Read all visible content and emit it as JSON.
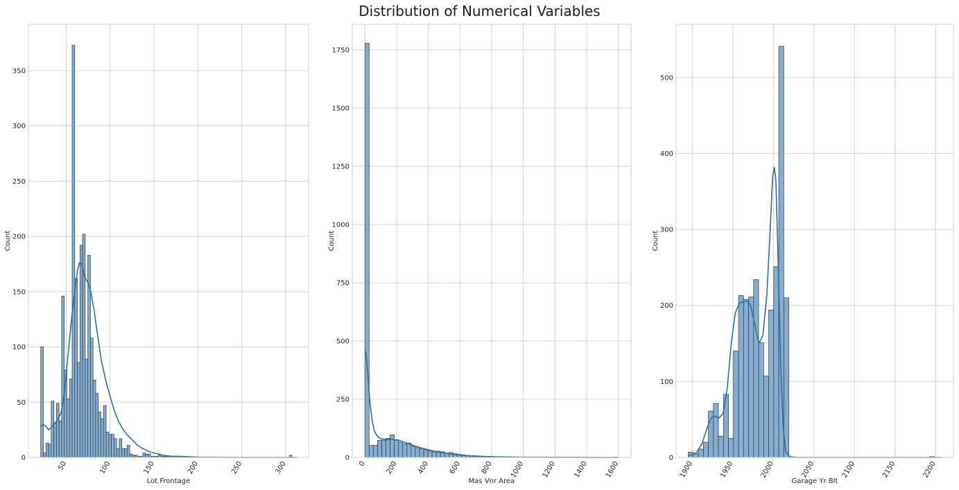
{
  "figure": {
    "title": "Distribution of Numerical Variables"
  },
  "colors": {
    "bar_fill": "#7fa9cc",
    "bar_edge": "#2b3a47",
    "kde": "#2472a8",
    "grid": "#d4d4d4",
    "frame": "#cfcfcf",
    "text": "#262626"
  },
  "chart_data": [
    {
      "type": "bar",
      "xlabel": "Lot Frontage",
      "ylabel": "Count",
      "grid": true,
      "xlim": [
        7,
        326
      ],
      "ylim": [
        0,
        392
      ],
      "xticks": [
        50,
        100,
        150,
        200,
        250,
        300
      ],
      "yticks": [
        0,
        50,
        100,
        150,
        200,
        250,
        300,
        350
      ],
      "bin_start": 21,
      "bin_width": 2.98,
      "counts": [
        100,
        4,
        13,
        12,
        51,
        31,
        49,
        33,
        146,
        79,
        53,
        71,
        373,
        162,
        86,
        192,
        202,
        89,
        183,
        108,
        70,
        58,
        41,
        35,
        47,
        23,
        21,
        21,
        17,
        8,
        17,
        8,
        8,
        11,
        3,
        2,
        2,
        1,
        1,
        4,
        3,
        3,
        1,
        1,
        1,
        2,
        1,
        1,
        1,
        1,
        1,
        1,
        1,
        1,
        1,
        0,
        0,
        0,
        0,
        0,
        0,
        0,
        0,
        0,
        0,
        0,
        0,
        0,
        0,
        0,
        0,
        0,
        0,
        0,
        0,
        0,
        0,
        0,
        0,
        0,
        0,
        0,
        0,
        0,
        0,
        0,
        0,
        0,
        0,
        0,
        0,
        0,
        0,
        0,
        0,
        2
      ],
      "kde": [
        [
          21,
          28
        ],
        [
          24,
          30
        ],
        [
          27,
          28
        ],
        [
          30,
          25
        ],
        [
          33,
          27
        ],
        [
          36,
          30
        ],
        [
          40,
          34
        ],
        [
          44,
          40
        ],
        [
          48,
          58
        ],
        [
          52,
          92
        ],
        [
          56,
          125
        ],
        [
          60,
          152
        ],
        [
          63,
          170
        ],
        [
          65,
          176
        ],
        [
          68,
          175
        ],
        [
          71,
          163
        ],
        [
          75,
          158
        ],
        [
          78,
          150
        ],
        [
          82,
          132
        ],
        [
          86,
          109
        ],
        [
          90,
          88
        ],
        [
          95,
          70
        ],
        [
          100,
          55
        ],
        [
          105,
          42
        ],
        [
          110,
          32
        ],
        [
          115,
          25
        ],
        [
          120,
          20
        ],
        [
          125,
          16
        ],
        [
          130,
          12
        ],
        [
          135,
          9
        ],
        [
          140,
          7
        ],
        [
          145,
          5
        ],
        [
          150,
          4
        ],
        [
          155,
          3
        ],
        [
          160,
          2
        ],
        [
          170,
          1
        ],
        [
          180,
          1
        ],
        [
          200,
          0.3
        ],
        [
          250,
          0
        ],
        [
          313,
          0
        ]
      ]
    },
    {
      "type": "bar",
      "xlabel": "Mas Vnr Area",
      "ylabel": "Count",
      "grid": true,
      "xlim": [
        -80,
        1680
      ],
      "ylim": [
        0,
        1860
      ],
      "xticks": [
        0,
        200,
        400,
        600,
        800,
        1000,
        1200,
        1400,
        1600
      ],
      "yticks": [
        0,
        250,
        500,
        750,
        1000,
        1250,
        1500,
        1750
      ],
      "bin_start": 0,
      "bin_width": 26.5,
      "counts": [
        1778,
        52,
        52,
        73,
        74,
        82,
        97,
        76,
        65,
        58,
        62,
        48,
        42,
        38,
        33,
        28,
        24,
        27,
        24,
        19,
        21,
        16,
        13,
        11,
        9,
        8,
        7,
        6,
        5,
        5,
        4,
        3,
        3,
        2,
        2,
        2,
        1,
        1,
        1,
        1,
        1,
        1,
        1,
        1,
        1,
        1,
        1,
        1,
        1,
        1,
        1,
        0,
        0,
        0,
        0,
        0,
        0,
        0,
        0,
        1
      ],
      "kde": [
        [
          0,
          460
        ],
        [
          8,
          440
        ],
        [
          18,
          360
        ],
        [
          30,
          250
        ],
        [
          45,
          160
        ],
        [
          60,
          112
        ],
        [
          80,
          90
        ],
        [
          100,
          80
        ],
        [
          130,
          77
        ],
        [
          160,
          78
        ],
        [
          190,
          76
        ],
        [
          220,
          72
        ],
        [
          250,
          65
        ],
        [
          300,
          52
        ],
        [
          350,
          42
        ],
        [
          400,
          33
        ],
        [
          450,
          25
        ],
        [
          500,
          19
        ],
        [
          550,
          14
        ],
        [
          600,
          10
        ],
        [
          650,
          7
        ],
        [
          700,
          5
        ],
        [
          800,
          3
        ],
        [
          900,
          2
        ],
        [
          1000,
          1
        ],
        [
          1100,
          1
        ],
        [
          1200,
          0.5
        ],
        [
          1400,
          0.3
        ],
        [
          1600,
          0
        ]
      ]
    },
    {
      "type": "bar",
      "xlabel": "Garage Yr Blt",
      "ylabel": "Count",
      "grid": true,
      "xlim": [
        1880,
        2222
      ],
      "ylim": [
        0,
        570
      ],
      "xticks": [
        1900,
        1950,
        2000,
        2050,
        2100,
        2150,
        2200
      ],
      "yticks": [
        0,
        100,
        200,
        300,
        400,
        500
      ],
      "bin_start": 1895,
      "bin_width": 6.2,
      "counts": [
        7,
        5,
        11,
        20,
        61,
        71,
        28,
        83,
        25,
        140,
        213,
        208,
        211,
        234,
        151,
        107,
        194,
        251,
        541,
        210,
        0,
        0,
        0,
        0,
        0,
        0,
        0,
        0,
        0,
        0,
        0,
        0,
        0,
        0,
        0,
        0,
        0,
        0,
        0,
        0,
        0,
        0,
        0,
        0,
        0,
        0,
        0,
        0,
        1
      ],
      "kde": [
        [
          1895,
          2
        ],
        [
          1905,
          6
        ],
        [
          1912,
          18
        ],
        [
          1918,
          38
        ],
        [
          1923,
          52
        ],
        [
          1928,
          54
        ],
        [
          1933,
          52
        ],
        [
          1938,
          58
        ],
        [
          1943,
          90
        ],
        [
          1948,
          150
        ],
        [
          1953,
          190
        ],
        [
          1958,
          203
        ],
        [
          1963,
          205
        ],
        [
          1968,
          206
        ],
        [
          1972,
          200
        ],
        [
          1977,
          175
        ],
        [
          1982,
          150
        ],
        [
          1987,
          160
        ],
        [
          1992,
          215
        ],
        [
          1996,
          300
        ],
        [
          1999,
          368
        ],
        [
          2001,
          382
        ],
        [
          2003,
          365
        ],
        [
          2006,
          250
        ],
        [
          2009,
          120
        ],
        [
          2012,
          40
        ],
        [
          2015,
          8
        ],
        [
          2020,
          1
        ],
        [
          2030,
          0
        ],
        [
          2100,
          0
        ],
        [
          2207,
          0
        ]
      ]
    }
  ]
}
